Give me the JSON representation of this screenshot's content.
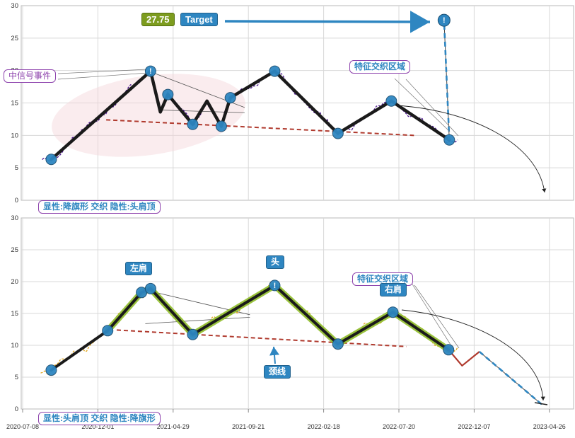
{
  "colors": {
    "grid": "#d8d8d8",
    "panel_border": "#b8b8b8",
    "axis_text": "#333333",
    "zigzag": "#1a1a1a",
    "dot_fill": "#2e86c1",
    "dot_edge": "#1b4f72",
    "accent_blue": "#2e86c1",
    "trend_red": "#b03a2e",
    "highlight_green": "#8fbc2a",
    "price_top": "#4a148c",
    "price_bottom": "#e0a418",
    "region_pink": "#f5d5da",
    "label_purple": "#8e44ad",
    "target_box_olive": "#7d9c1f"
  },
  "labels": {
    "signal_event": "中信号事件",
    "target_value": "27.75",
    "target": "Target",
    "feature_zone_top": "特征交织区域",
    "status_top": "显性:降旗形 交织 隐性:头肩顶",
    "left_shoulder": "左肩",
    "head": "头",
    "feature_zone_bottom": "特征交织区域",
    "right_shoulder": "右肩",
    "neckline": "颈线",
    "status_bottom": "显性:头肩顶 交织 隐性:降旗形"
  },
  "axis": {
    "x_tick_labels": [
      "2020-07-08",
      "2020-12-01",
      "2021-04-29",
      "2021-09-21",
      "2022-02-18",
      "2022-07-20",
      "2022-12-07",
      "2023-04-26"
    ],
    "y_ticks": [
      0,
      5,
      10,
      15,
      20,
      25,
      30
    ]
  },
  "chart_data": [
    {
      "type": "line",
      "panel": "top",
      "status_label": "显性:降旗形 交织 隐性:头肩顶",
      "ylim": [
        0,
        30
      ],
      "yticks": [
        0,
        5,
        10,
        15,
        20,
        25,
        30
      ],
      "zigzag_pivots": [
        [
          0.38,
          6.3
        ],
        [
          1.7,
          19.9
        ],
        [
          1.83,
          13.6
        ],
        [
          1.93,
          16.3
        ],
        [
          2.26,
          11.7
        ],
        [
          2.45,
          15.3
        ],
        [
          2.64,
          11.4
        ],
        [
          2.76,
          15.8
        ],
        [
          3.35,
          19.9
        ],
        [
          4.19,
          10.3
        ],
        [
          4.9,
          15.3
        ],
        [
          5.67,
          9.3
        ]
      ],
      "dot_indices": [
        0,
        1,
        3,
        4,
        6,
        7,
        8,
        9,
        10,
        11
      ],
      "peak_indices": [
        1
      ],
      "target": {
        "t": 5.6,
        "value": 27.75,
        "label": "Target"
      },
      "trendline": [
        [
          1.11,
          12.4
        ],
        [
          5.2,
          10.0
        ]
      ],
      "projection": [
        [
          5.67,
          9.3
        ],
        [
          5.6,
          27.75
        ]
      ],
      "thin_lines": [
        [
          [
            1.7,
            19.8
          ],
          [
            2.95,
            14.3
          ]
        ],
        [
          [
            1.86,
            13.9
          ],
          [
            2.95,
            13.5
          ]
        ]
      ],
      "region_ellipse": true,
      "wiggle": {
        "t_start": 0.26,
        "t_end": 5.79,
        "amp": 6,
        "phase": 0.5
      }
    },
    {
      "type": "line",
      "panel": "bottom",
      "status_label": "显性:头肩顶 交织 隐性:降旗形",
      "ylim": [
        0,
        30
      ],
      "yticks": [
        0,
        5,
        10,
        15,
        20,
        25,
        30
      ],
      "zigzag_pivots": [
        [
          0.38,
          6.1
        ],
        [
          1.13,
          12.3
        ],
        [
          1.58,
          18.3
        ],
        [
          1.7,
          18.9
        ],
        [
          2.26,
          11.7
        ],
        [
          3.35,
          19.4
        ],
        [
          4.19,
          10.2
        ],
        [
          4.92,
          15.2
        ],
        [
          5.66,
          9.3
        ]
      ],
      "dot_indices": [
        0,
        1,
        2,
        3,
        4,
        5,
        6,
        7,
        8
      ],
      "peak_indices": [
        5
      ],
      "green_range": [
        1,
        8
      ],
      "red_tail": [
        [
          5.66,
          9.3
        ],
        [
          5.84,
          6.8
        ],
        [
          6.07,
          9.0
        ]
      ],
      "projection": [
        [
          6.07,
          9.0
        ],
        [
          6.9,
          0.7
        ]
      ],
      "trendline": [
        [
          1.25,
          12.4
        ],
        [
          5.1,
          9.8
        ]
      ],
      "thin_lines": [
        [
          [
            1.66,
            18.6
          ],
          [
            3.02,
            14.8
          ]
        ],
        [
          [
            1.63,
            13.4
          ],
          [
            3.02,
            14.4
          ]
        ]
      ],
      "wiggle": {
        "t_start": 0.24,
        "t_end": 5.8,
        "amp": 7.5,
        "phase": 2.8
      }
    }
  ]
}
